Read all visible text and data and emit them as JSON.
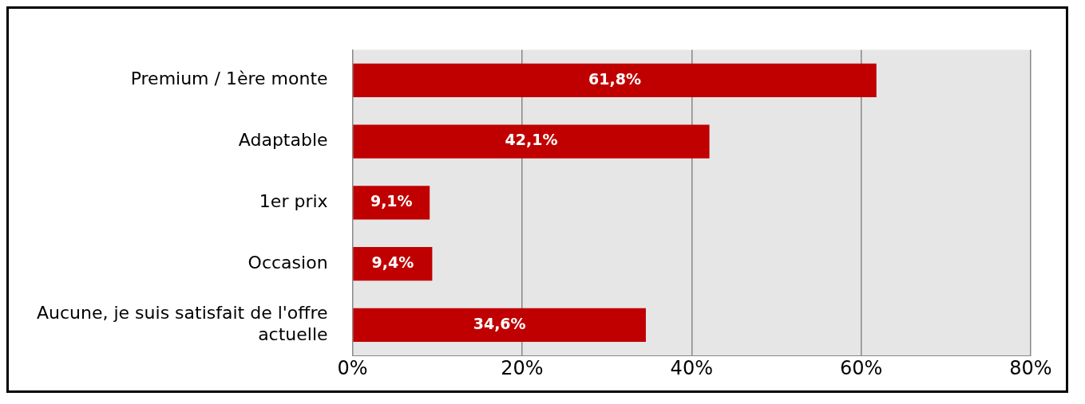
{
  "chart_data": {
    "type": "bar",
    "orientation": "horizontal",
    "categories": [
      "Premium / 1ère monte",
      "Adaptable",
      "1er prix",
      "Occasion",
      "Aucune, je suis satisfait de l'offre actuelle"
    ],
    "values": [
      61.8,
      42.1,
      9.1,
      9.4,
      34.6
    ],
    "value_labels": [
      "61,8%",
      "42,1%",
      "9,1%",
      "9,4%",
      "34,6%"
    ],
    "color": "#c00000",
    "xlim": [
      0,
      80
    ],
    "xticks": [
      {
        "value": 0,
        "label": "0%"
      },
      {
        "value": 20,
        "label": "20%"
      },
      {
        "value": 40,
        "label": "40%"
      },
      {
        "value": 60,
        "label": "60%"
      },
      {
        "value": 80,
        "label": "80%"
      }
    ],
    "grid": "x",
    "legend": false
  }
}
